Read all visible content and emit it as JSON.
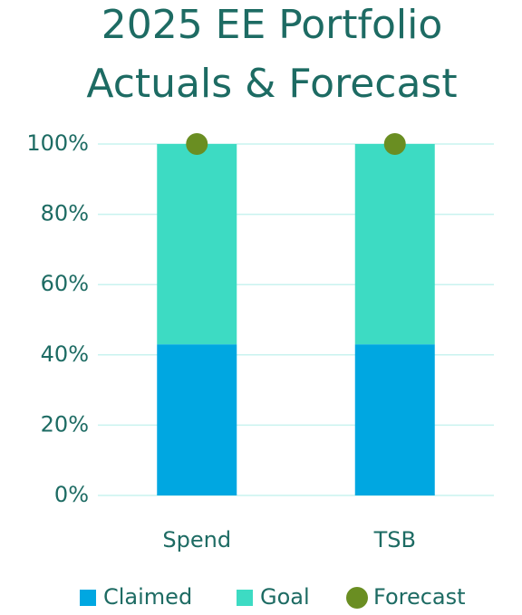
{
  "chart_data": {
    "type": "bar",
    "stacked": true,
    "title": [
      "2025 EE Portfolio",
      "Actuals & Forecast"
    ],
    "categories": [
      "Spend",
      "TSB"
    ],
    "series": [
      {
        "name": "Claimed",
        "color": "#00a7e1",
        "type": "bar",
        "values": [
          43,
          43
        ]
      },
      {
        "name": "Goal",
        "color": "#3ddbc3",
        "type": "bar",
        "values": [
          57,
          57
        ]
      },
      {
        "name": "Forecast",
        "color": "#6a8e22",
        "type": "scatter",
        "values": [
          100,
          100
        ]
      }
    ],
    "ylim": [
      0,
      100
    ],
    "yticks": [
      {
        "value": 0,
        "label": "0%"
      },
      {
        "value": 20,
        "label": "20%"
      },
      {
        "value": 40,
        "label": "40%"
      },
      {
        "value": 60,
        "label": "60%"
      },
      {
        "value": 80,
        "label": "80%"
      },
      {
        "value": 100,
        "label": "100%"
      }
    ],
    "grid": true,
    "grid_color": "#c9f3ef",
    "legend": "bottom"
  }
}
